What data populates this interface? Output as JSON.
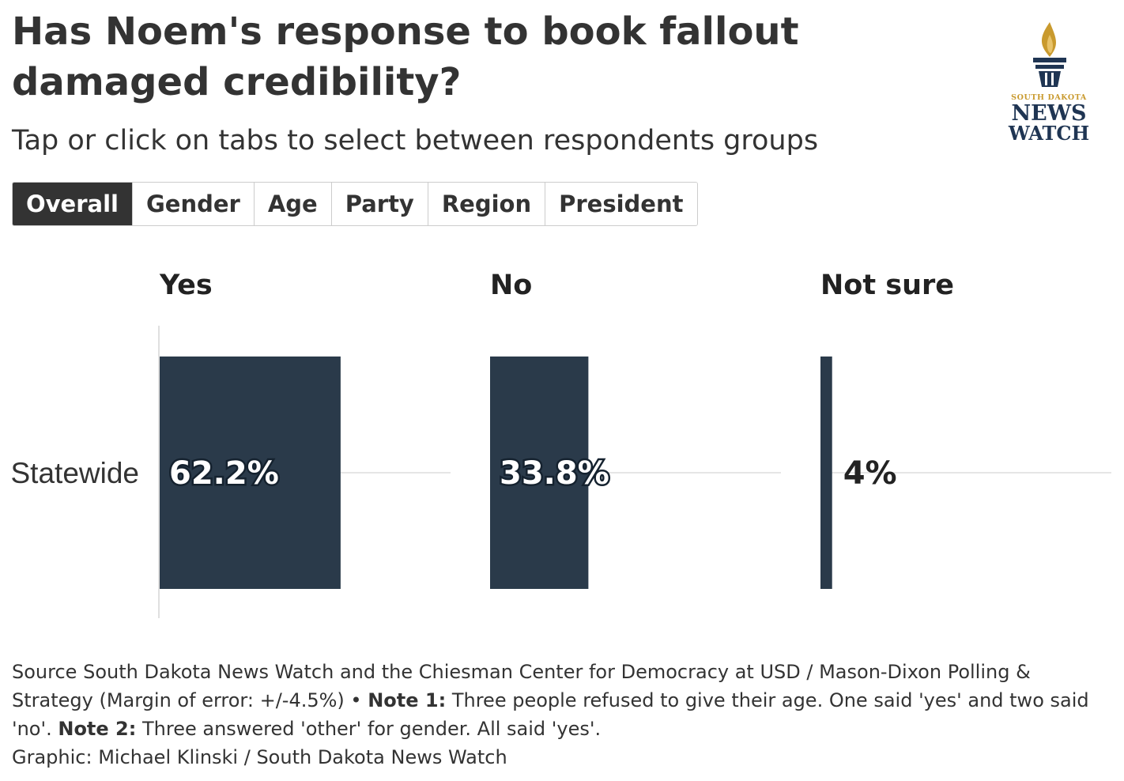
{
  "header": {
    "title": "Has Noem's response to book fallout damaged credibility?",
    "subtitle": "Tap or click on tabs to select between respondents groups"
  },
  "logo": {
    "icon": "torch-icon",
    "line1": "SOUTH DAKOTA",
    "line2": "NEWS",
    "line3": "WATCH",
    "gold": "#c99a2e",
    "navy": "#1f3553"
  },
  "tabs": [
    {
      "label": "Overall",
      "active": true
    },
    {
      "label": "Gender",
      "active": false
    },
    {
      "label": "Age",
      "active": false
    },
    {
      "label": "Party",
      "active": false
    },
    {
      "label": "Region",
      "active": false
    },
    {
      "label": "President",
      "active": false
    }
  ],
  "chart_data": {
    "type": "bar",
    "categories": [
      "Statewide"
    ],
    "series": [
      {
        "name": "Yes",
        "values": [
          62.2
        ],
        "label": "62.2%"
      },
      {
        "name": "No",
        "values": [
          33.8
        ],
        "label": "33.8%"
      },
      {
        "name": "Not sure",
        "values": [
          4
        ],
        "label": "4%"
      }
    ],
    "xlim": [
      0,
      100
    ],
    "bar_color": "#2a3a4a",
    "grid": true,
    "legend": "none"
  },
  "footer": {
    "source_label": "Source",
    "source_text": "South Dakota News Watch and the Chiesman Center for Democracy at USD / Mason-Dixon Polling & Strategy (Margin of error: +/-4.5%)",
    "separator": "•",
    "note1_label": "Note 1:",
    "note1_text": "Three people refused to give their age. One said 'yes' and two said 'no'.",
    "note2_label": "Note 2:",
    "note2_text": "Three answered 'other' for gender. All said 'yes'.",
    "credit": "Graphic: Michael Klinski / South Dakota News Watch"
  }
}
